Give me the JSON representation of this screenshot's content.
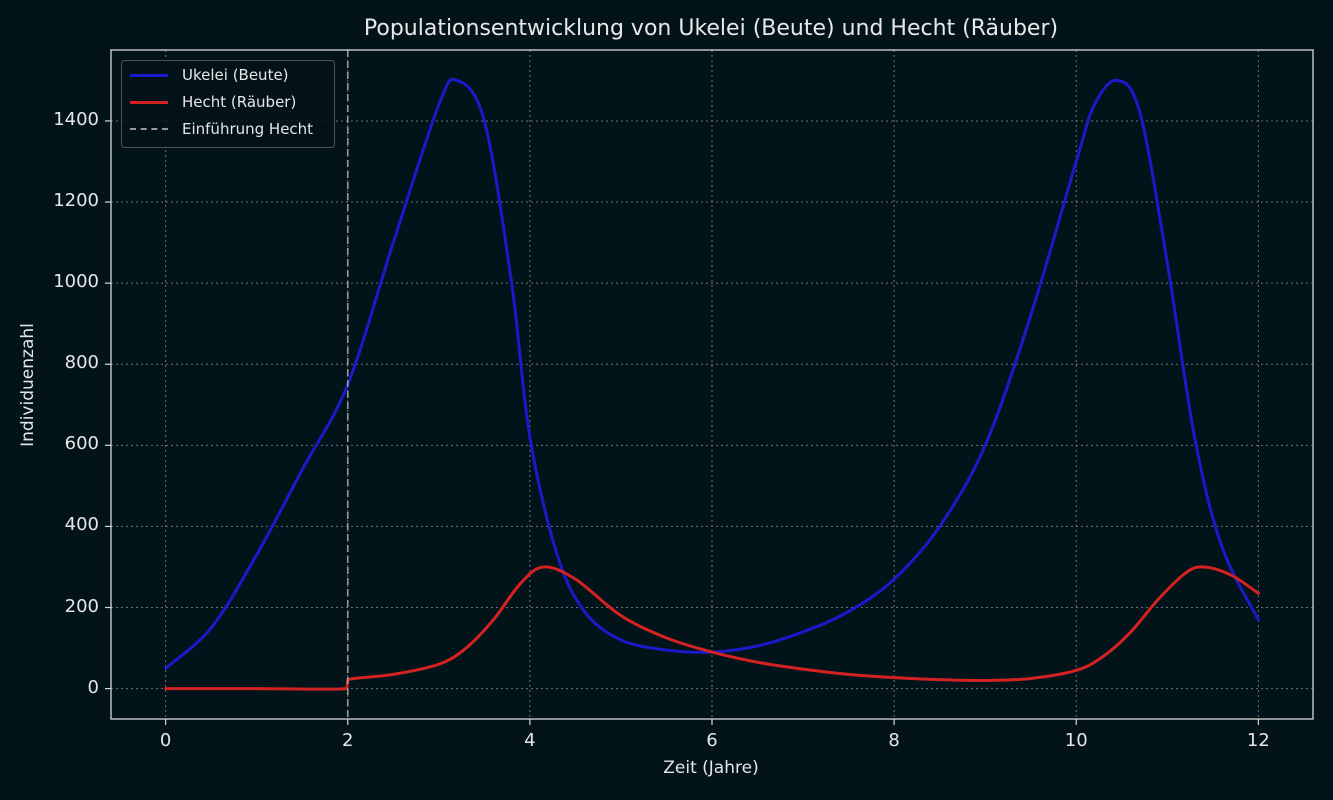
{
  "chart_data": {
    "type": "line",
    "title": "Populationsentwicklung von Ukelei (Beute) und Hecht (Räuber)",
    "xlabel": "Zeit (Jahre)",
    "ylabel": "Individuenzahl",
    "xlim": [
      -0.6,
      12.6
    ],
    "ylim": [
      -75,
      1575
    ],
    "xticks": [
      0,
      2,
      4,
      6,
      8,
      10,
      12
    ],
    "yticks": [
      0,
      200,
      400,
      600,
      800,
      1000,
      1200,
      1400
    ],
    "grid": true,
    "legend_position": "upper left",
    "series": [
      {
        "name": "Ukelei (Beute)",
        "color": "#1a1acc",
        "x": [
          0,
          0.5,
          1,
          1.5,
          2,
          2.5,
          3,
          3.2,
          3.5,
          3.8,
          4,
          4.3,
          4.6,
          5,
          5.5,
          6,
          6.5,
          7,
          7.5,
          8,
          8.5,
          9,
          9.5,
          10,
          10.2,
          10.45,
          10.7,
          11,
          11.3,
          11.6,
          12
        ],
        "y": [
          50,
          150,
          330,
          540,
          750,
          1100,
          1440,
          1500,
          1400,
          1000,
          620,
          330,
          190,
          120,
          95,
          90,
          105,
          140,
          190,
          270,
          400,
          600,
          920,
          1300,
          1440,
          1500,
          1420,
          1050,
          620,
          350,
          170
        ]
      },
      {
        "name": "Hecht (Räuber)",
        "color": "#d42222",
        "x": [
          0,
          1,
          1.99,
          2,
          2.5,
          3,
          3.3,
          3.6,
          3.9,
          4.15,
          4.5,
          5,
          5.5,
          6,
          6.5,
          7,
          7.5,
          8,
          8.5,
          9,
          9.5,
          10,
          10.3,
          10.6,
          10.9,
          11.2,
          11.4,
          11.7,
          12
        ],
        "y": [
          0,
          0,
          0,
          22,
          35,
          60,
          100,
          170,
          260,
          300,
          270,
          180,
          125,
          90,
          65,
          48,
          35,
          27,
          22,
          20,
          25,
          45,
          80,
          140,
          220,
          285,
          300,
          280,
          235
        ]
      },
      {
        "name": "Einführung Hecht",
        "color": "#9a9a9a",
        "style": "dashed",
        "vertical_line_x": 2
      }
    ]
  },
  "legend": {
    "items": [
      {
        "label": "Ukelei (Beute)",
        "color": "#1a1acc",
        "style": "solid"
      },
      {
        "label": "Hecht (Räuber)",
        "color": "#d42222",
        "style": "solid"
      },
      {
        "label": "Einführung Hecht",
        "color": "#9a9a9a",
        "style": "dashed"
      }
    ]
  },
  "colors": {
    "background": "#03131a",
    "axes": "#d8d8d8",
    "grid": "#6a7478"
  }
}
